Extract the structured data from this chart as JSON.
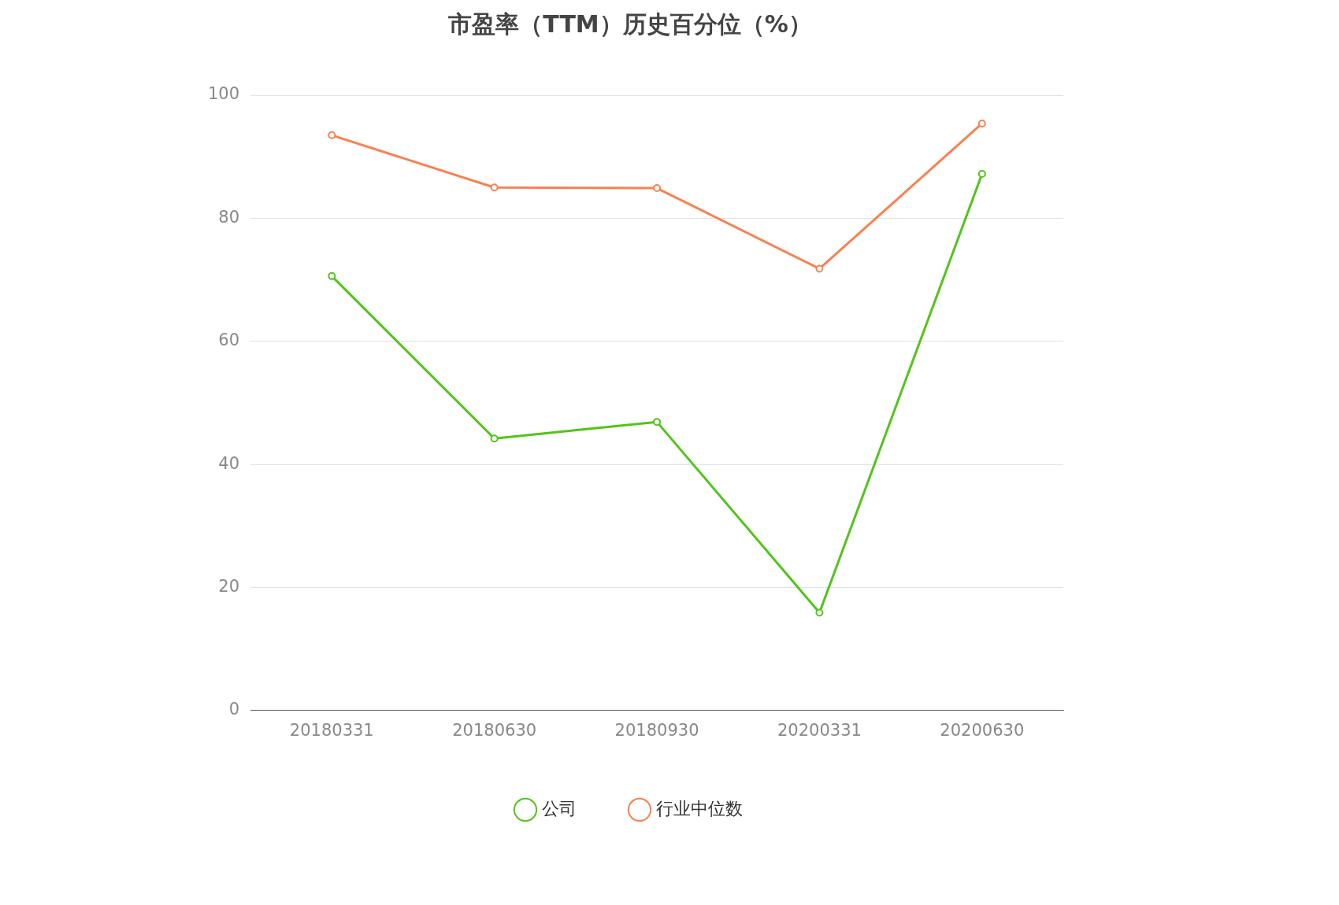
{
  "chart_data": {
    "type": "line",
    "title": "市盈率（TTM）历史百分位（%）",
    "categories": [
      "20180331",
      "20180630",
      "20180930",
      "20200331",
      "20200630"
    ],
    "series": [
      {
        "name": "公司",
        "color": "#52c41a",
        "values": [
          70.6,
          44.2,
          46.9,
          15.9,
          87.2
        ]
      },
      {
        "name": "行业中位数",
        "color": "#fa8050",
        "values": [
          93.5,
          85.0,
          84.9,
          71.8,
          95.4
        ]
      }
    ],
    "ylim": [
      0,
      100
    ],
    "yticks": [
      0,
      20,
      40,
      60,
      80,
      100
    ],
    "grid": "y",
    "legend": "bottom",
    "marker": "circle",
    "line_style": "solid"
  }
}
